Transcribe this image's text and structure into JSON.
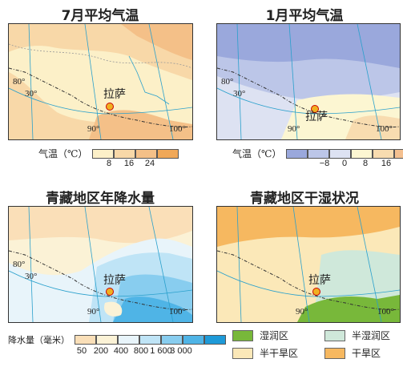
{
  "city": "拉萨",
  "labels": {
    "lat30": "30°",
    "lon80": "80°",
    "lon90": "90°",
    "lon100": "100°"
  },
  "panels": {
    "jul": {
      "title": "7月平均气温",
      "legend_title": "气温（℃）",
      "colors": [
        "#fcf0c8",
        "#f8d8a8",
        "#f4c088",
        "#f0a858"
      ],
      "ticks": [
        "8",
        "16",
        "24"
      ]
    },
    "jan": {
      "title": "1月平均气温",
      "legend_title": "气温（℃）",
      "colors": [
        "#9aa8dc",
        "#bcc6e8",
        "#dde2f2",
        "#fcf6d2",
        "#f8dcb0",
        "#f4c090"
      ],
      "ticks": [
        "−8",
        "0",
        "8",
        "16"
      ]
    },
    "precip": {
      "title": "青藏地区年降水量",
      "legend_title": "降水量（毫米）",
      "colors": [
        "#fadfb8",
        "#fbf2d6",
        "#e8f4fa",
        "#bfe4f6",
        "#88cdef",
        "#4fb4e6",
        "#1e9ad8"
      ],
      "ticks": [
        "50",
        "200",
        "400",
        "800",
        "1 600",
        "3 000"
      ]
    },
    "humid": {
      "title": "青藏地区干湿状况",
      "classes": [
        {
          "label": "湿润区",
          "color": "#78b83a"
        },
        {
          "label": "半湿润区",
          "color": "#cfe8da"
        },
        {
          "label": "半干旱区",
          "color": "#fbe8b8"
        },
        {
          "label": "干旱区",
          "color": "#f6b860"
        }
      ]
    }
  }
}
